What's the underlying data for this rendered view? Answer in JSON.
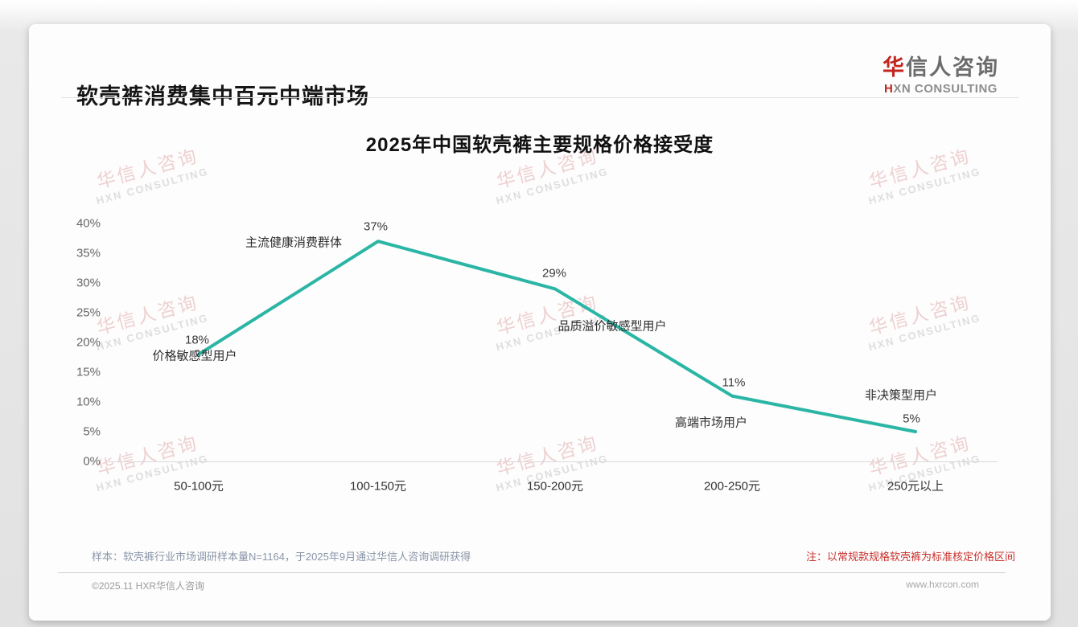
{
  "page": {
    "title": "软壳裤消费集中百元中端市场",
    "logo": {
      "cn_first": "华",
      "cn_rest": "信人咨询",
      "en_first": "H",
      "en_rest": "XN CONSULTING"
    },
    "watermark": {
      "line1": "华信人咨询",
      "line2": "HXN CONSULTING"
    },
    "colors": {
      "accent_red": "#c2251e",
      "note_red": "#c9302c",
      "line_teal": "#2ab5a5"
    }
  },
  "chart_data": {
    "type": "line",
    "title": "2025年中国软壳裤主要规格价格接受度",
    "categories": [
      "50-100元",
      "100-150元",
      "150-200元",
      "200-250元",
      "250元以上"
    ],
    "values": [
      18,
      37,
      29,
      11,
      5
    ],
    "value_labels": [
      "18%",
      "37%",
      "29%",
      "11%",
      "5%"
    ],
    "point_annotations": [
      "价格敏感型用户",
      "主流健康消费群体",
      "品质溢价敏感型用户",
      "高端市场用户",
      "非决策型用户"
    ],
    "y_ticks": [
      "0%",
      "5%",
      "10%",
      "15%",
      "20%",
      "25%",
      "30%",
      "35%",
      "40%"
    ],
    "ylim": [
      0,
      40
    ],
    "xlabel": "",
    "ylabel": "",
    "grid": false,
    "legend": false,
    "line_color": "#2ab5a5"
  },
  "footer": {
    "sample_note": "样本：软壳裤行业市场调研样本量N=1164，于2025年9月通过华信人咨询调研获得",
    "price_note": "注：以常规款规格软壳裤为标准核定价格区间",
    "copyright": "©2025.11 HXR华信人咨询",
    "website": "www.hxrcon.com"
  }
}
